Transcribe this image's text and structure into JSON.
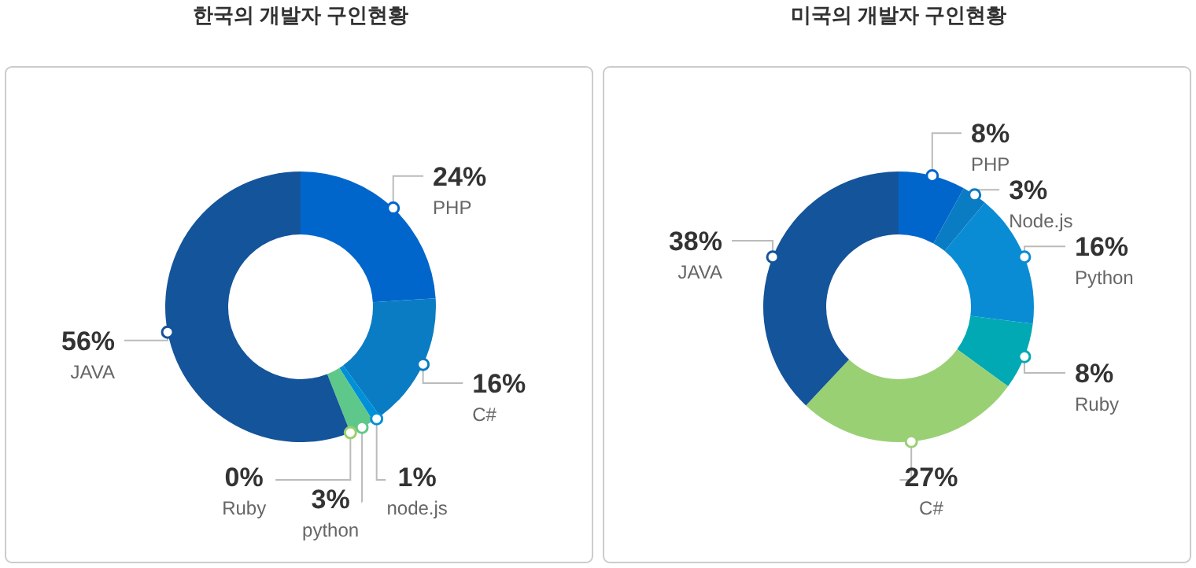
{
  "chart_data": [
    {
      "type": "donut",
      "title": "한국의 개발자 구인현황",
      "categories": [
        "PHP",
        "C#",
        "node.js",
        "python",
        "Ruby",
        "JAVA"
      ],
      "values": [
        24,
        16,
        1,
        3,
        0,
        56
      ],
      "value_labels": [
        "24%",
        "16%",
        "1%",
        "3%",
        "0%",
        "56%"
      ],
      "colors": [
        "#0066cc",
        "#0a7cc4",
        "#0090d8",
        "#5ec88a",
        "#9ccf6a",
        "#14549a"
      ]
    },
    {
      "type": "donut",
      "title": "미국의 개발자 구인현황",
      "categories": [
        "PHP",
        "Node.js",
        "Python",
        "Ruby",
        "C#",
        "JAVA"
      ],
      "values": [
        8,
        3,
        16,
        8,
        27,
        38
      ],
      "value_labels": [
        "8%",
        "3%",
        "16%",
        "8%",
        "27%",
        "38%"
      ],
      "colors": [
        "#0066cc",
        "#0a7cc4",
        "#0a8cd4",
        "#00a9b4",
        "#9ad074",
        "#14549a"
      ]
    }
  ]
}
